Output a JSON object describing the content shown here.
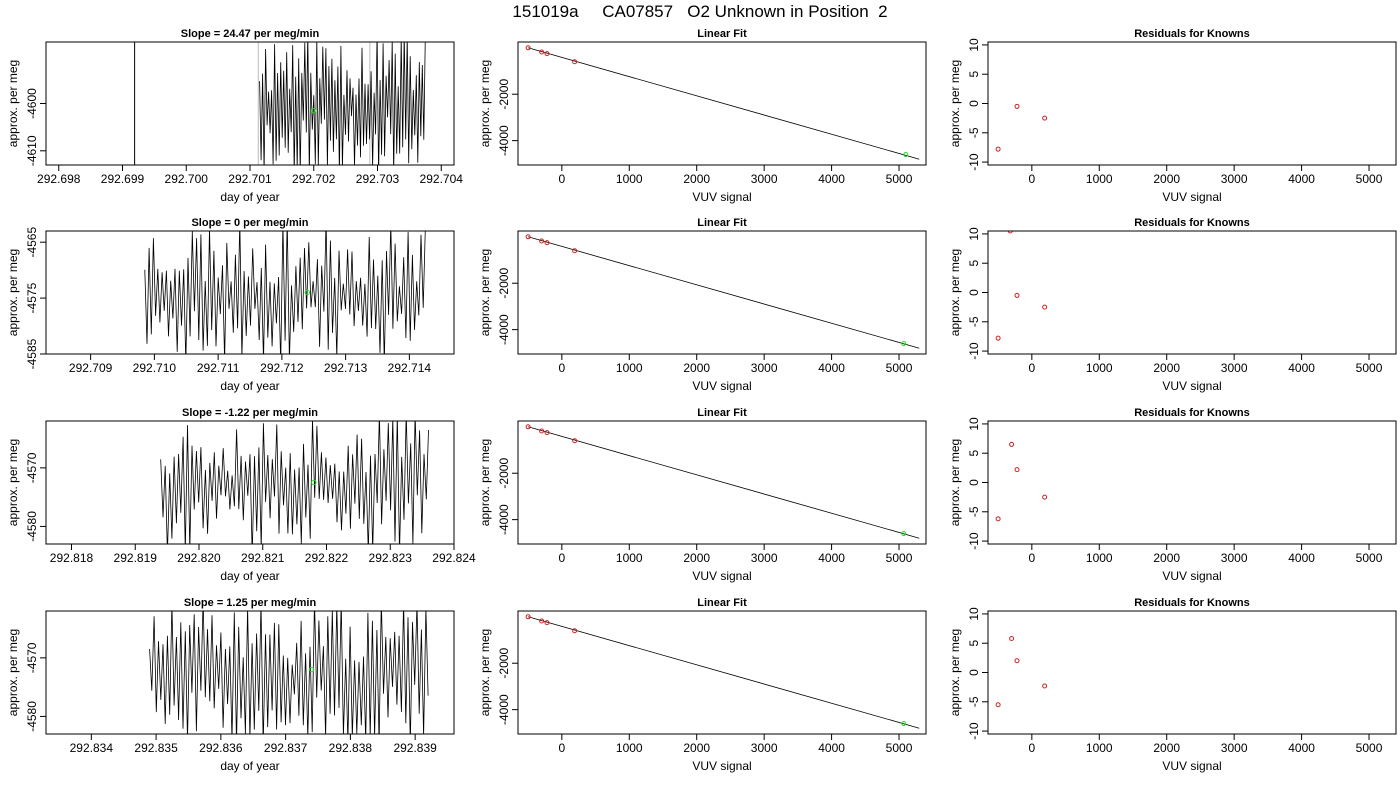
{
  "page": {
    "title": "151019a     CA07857   O2 Unknown in Position  2"
  },
  "chart_data": [
    {
      "type": "line",
      "panel": "time-series",
      "row": 0,
      "title": "Slope =  24.47  per meg/min",
      "xlabel": "day of year",
      "ylabel": "approx. per meg",
      "xlim": [
        292.6978,
        292.7042
      ],
      "ylim": [
        -4613,
        -4587
      ],
      "xticks": [
        "292.698",
        "292.699",
        "292.700",
        "292.701",
        "292.702",
        "292.703",
        "292.704"
      ],
      "xtick_values": [
        292.698,
        292.699,
        292.7,
        292.701,
        292.702,
        292.703,
        292.704
      ],
      "yticks": [
        "-4600",
        "-4610"
      ],
      "ytick_values": [
        -4600,
        -4610
      ],
      "trace": {
        "x_start": 292.70115,
        "x_end": 292.70375,
        "segments": 110,
        "y_bottom": -4613,
        "y_top": -4587,
        "seed": 11
      },
      "extra_lines": [
        {
          "x": 292.69919,
          "color": "#000000"
        },
        {
          "x": 292.70113,
          "color": "#bbbbbb"
        },
        {
          "x": 292.70288,
          "color": "#bbbbbb"
        }
      ],
      "marker": {
        "x": 292.702,
        "y": -4601.5,
        "color": "#22dd22"
      }
    },
    {
      "type": "scatter",
      "panel": "linear-fit",
      "row": 0,
      "title": "Linear Fit",
      "xlabel": "VUV signal",
      "ylabel": "approx. per meg",
      "xlim": [
        -650,
        5400
      ],
      "ylim": [
        -5050,
        250
      ],
      "xticks": [
        "0",
        "1000",
        "2000",
        "3000",
        "4000",
        "5000"
      ],
      "xtick_values": [
        0,
        1000,
        2000,
        3000,
        4000,
        5000
      ],
      "yticks": [
        "-2000",
        "-4000"
      ],
      "ytick_values": [
        -2000,
        -4000
      ],
      "knowns": [
        {
          "x": -500,
          "y": 0
        },
        {
          "x": -300,
          "y": -180
        },
        {
          "x": -220,
          "y": -250
        },
        {
          "x": 190,
          "y": -600
        }
      ],
      "unknown": {
        "x": 5100,
        "y": -4600
      },
      "fit": {
        "x": [
          -500,
          5300
        ],
        "y": [
          0,
          -4800
        ]
      }
    },
    {
      "type": "scatter",
      "panel": "residuals",
      "row": 0,
      "title": "Residuals for Knowns",
      "xlabel": "VUV signal",
      "ylabel": "approx. per meg",
      "xlim": [
        -650,
        5400
      ],
      "ylim": [
        -10.5,
        10.5
      ],
      "xticks": [
        "0",
        "1000",
        "2000",
        "3000",
        "4000",
        "5000"
      ],
      "xtick_values": [
        0,
        1000,
        2000,
        3000,
        4000,
        5000
      ],
      "yticks": [
        "10",
        "5",
        "0",
        "-5",
        "-10"
      ],
      "ytick_values": [
        10,
        5,
        0,
        -5,
        -10
      ],
      "points": [
        {
          "x": -500,
          "y": -7.8
        },
        {
          "x": -220,
          "y": -0.5
        },
        {
          "x": 190,
          "y": -2.5
        }
      ]
    },
    {
      "type": "line",
      "panel": "time-series",
      "row": 1,
      "title": "Slope =  0  per meg/min",
      "xlabel": "day of year",
      "ylabel": "approx. per meg",
      "xlim": [
        292.7083,
        292.7147
      ],
      "ylim": [
        -4585,
        -4563
      ],
      "xticks": [
        "292.709",
        "292.710",
        "292.711",
        "292.712",
        "292.713",
        "292.714"
      ],
      "xtick_values": [
        292.709,
        292.71,
        292.711,
        292.712,
        292.713,
        292.714
      ],
      "yticks": [
        "-4565",
        "-4575",
        "-4585"
      ],
      "ytick_values": [
        -4565,
        -4575,
        -4585
      ],
      "trace": {
        "x_start": 292.70985,
        "x_end": 292.71425,
        "segments": 130,
        "y_bottom": -4585,
        "y_top": -4563,
        "seed": 23
      },
      "extra_lines": [],
      "marker": {
        "x": 292.7124,
        "y": -4574,
        "color": "#22dd22"
      }
    },
    {
      "type": "scatter",
      "panel": "linear-fit",
      "row": 1,
      "title": "Linear Fit",
      "xlabel": "VUV signal",
      "ylabel": "approx. per meg",
      "xlim": [
        -650,
        5400
      ],
      "ylim": [
        -5050,
        250
      ],
      "xticks": [
        "0",
        "1000",
        "2000",
        "3000",
        "4000",
        "5000"
      ],
      "xtick_values": [
        0,
        1000,
        2000,
        3000,
        4000,
        5000
      ],
      "yticks": [
        "-2000",
        "-4000"
      ],
      "ytick_values": [
        -2000,
        -4000
      ],
      "knowns": [
        {
          "x": -500,
          "y": 0
        },
        {
          "x": -300,
          "y": -180
        },
        {
          "x": -220,
          "y": -250
        },
        {
          "x": 190,
          "y": -600
        }
      ],
      "unknown": {
        "x": 5070,
        "y": -4600
      },
      "fit": {
        "x": [
          -500,
          5300
        ],
        "y": [
          0,
          -4800
        ]
      }
    },
    {
      "type": "scatter",
      "panel": "residuals",
      "row": 1,
      "title": "Residuals for Knowns",
      "xlabel": "VUV signal",
      "ylabel": "approx. per meg",
      "xlim": [
        -650,
        5400
      ],
      "ylim": [
        -10.5,
        10.5
      ],
      "xticks": [
        "0",
        "1000",
        "2000",
        "3000",
        "4000",
        "5000"
      ],
      "xtick_values": [
        0,
        1000,
        2000,
        3000,
        4000,
        5000
      ],
      "yticks": [
        "10",
        "5",
        "0",
        "-5",
        "-10"
      ],
      "ytick_values": [
        10,
        5,
        0,
        -5,
        -10
      ],
      "points": [
        {
          "x": -500,
          "y": -7.8
        },
        {
          "x": -220,
          "y": -0.5
        },
        {
          "x": 190,
          "y": -2.5
        },
        {
          "x": -320,
          "y": 10.5
        }
      ]
    },
    {
      "type": "line",
      "panel": "time-series",
      "row": 2,
      "title": "Slope =  -1.22  per meg/min",
      "xlabel": "day of year",
      "ylabel": "approx. per meg",
      "xlim": [
        292.8176,
        292.824
      ],
      "ylim": [
        -4583,
        -4562
      ],
      "xticks": [
        "292.818",
        "292.819",
        "292.820",
        "292.821",
        "292.822",
        "292.823",
        "292.824"
      ],
      "xtick_values": [
        292.818,
        292.819,
        292.82,
        292.821,
        292.822,
        292.823,
        292.824
      ],
      "yticks": [
        "-4570",
        "-4580"
      ],
      "ytick_values": [
        -4570,
        -4580
      ],
      "trace": {
        "x_start": 292.8194,
        "x_end": 292.8236,
        "segments": 120,
        "y_bottom": -4583,
        "y_top": -4562,
        "seed": 37
      },
      "extra_lines": [],
      "marker": {
        "x": 292.8218,
        "y": -4572.5,
        "color": "#22dd22"
      }
    },
    {
      "type": "scatter",
      "panel": "linear-fit",
      "row": 2,
      "title": "Linear Fit",
      "xlabel": "VUV signal",
      "ylabel": "approx. per meg",
      "xlim": [
        -650,
        5400
      ],
      "ylim": [
        -5050,
        250
      ],
      "xticks": [
        "0",
        "1000",
        "2000",
        "3000",
        "4000",
        "5000"
      ],
      "xtick_values": [
        0,
        1000,
        2000,
        3000,
        4000,
        5000
      ],
      "yticks": [
        "-2000",
        "-4000"
      ],
      "ytick_values": [
        -2000,
        -4000
      ],
      "knowns": [
        {
          "x": -500,
          "y": 0
        },
        {
          "x": -300,
          "y": -180
        },
        {
          "x": -220,
          "y": -250
        },
        {
          "x": 190,
          "y": -600
        }
      ],
      "unknown": {
        "x": 5070,
        "y": -4600
      },
      "fit": {
        "x": [
          -500,
          5300
        ],
        "y": [
          0,
          -4800
        ]
      }
    },
    {
      "type": "scatter",
      "panel": "residuals",
      "row": 2,
      "title": "Residuals for Knowns",
      "xlabel": "VUV signal",
      "ylabel": "approx. per meg",
      "xlim": [
        -650,
        5400
      ],
      "ylim": [
        -10.5,
        10.5
      ],
      "xticks": [
        "0",
        "1000",
        "2000",
        "3000",
        "4000",
        "5000"
      ],
      "xtick_values": [
        0,
        1000,
        2000,
        3000,
        4000,
        5000
      ],
      "yticks": [
        "10",
        "5",
        "0",
        "-5",
        "-10"
      ],
      "ytick_values": [
        10,
        5,
        0,
        -5,
        -10
      ],
      "points": [
        {
          "x": -500,
          "y": -6.2
        },
        {
          "x": -300,
          "y": 6.5
        },
        {
          "x": -220,
          "y": 2.2
        },
        {
          "x": 190,
          "y": -2.5
        }
      ]
    },
    {
      "type": "line",
      "panel": "time-series",
      "row": 3,
      "title": "Slope =  1.25  per meg/min",
      "xlabel": "day of year",
      "ylabel": "approx. per meg",
      "xlim": [
        292.8333,
        292.8396
      ],
      "ylim": [
        -4583,
        -4562
      ],
      "xticks": [
        "292.834",
        "292.835",
        "292.836",
        "292.837",
        "292.838",
        "292.839"
      ],
      "xtick_values": [
        292.834,
        292.835,
        292.836,
        292.837,
        292.838,
        292.839
      ],
      "yticks": [
        "-4570",
        "-4580"
      ],
      "ytick_values": [
        -4570,
        -4580
      ],
      "trace": {
        "x_start": 292.8349,
        "x_end": 292.8392,
        "segments": 125,
        "y_bottom": -4583,
        "y_top": -4562,
        "seed": 51
      },
      "extra_lines": [],
      "marker": {
        "x": 292.8374,
        "y": -4572,
        "color": "#22dd22"
      }
    },
    {
      "type": "scatter",
      "panel": "linear-fit",
      "row": 3,
      "title": "Linear Fit",
      "xlabel": "VUV signal",
      "ylabel": "approx. per meg",
      "xlim": [
        -650,
        5400
      ],
      "ylim": [
        -5050,
        250
      ],
      "xticks": [
        "0",
        "1000",
        "2000",
        "3000",
        "4000",
        "5000"
      ],
      "xtick_values": [
        0,
        1000,
        2000,
        3000,
        4000,
        5000
      ],
      "yticks": [
        "-2000",
        "-4000"
      ],
      "ytick_values": [
        -2000,
        -4000
      ],
      "knowns": [
        {
          "x": -500,
          "y": 0
        },
        {
          "x": -300,
          "y": -180
        },
        {
          "x": -220,
          "y": -250
        },
        {
          "x": 190,
          "y": -600
        }
      ],
      "unknown": {
        "x": 5070,
        "y": -4600
      },
      "fit": {
        "x": [
          -500,
          5300
        ],
        "y": [
          0,
          -4800
        ]
      }
    },
    {
      "type": "scatter",
      "panel": "residuals",
      "row": 3,
      "title": "Residuals for Knowns",
      "xlabel": "VUV signal",
      "ylabel": "approx. per meg",
      "xlim": [
        -650,
        5400
      ],
      "ylim": [
        -10.5,
        10.5
      ],
      "xticks": [
        "0",
        "1000",
        "2000",
        "3000",
        "4000",
        "5000"
      ],
      "xtick_values": [
        0,
        1000,
        2000,
        3000,
        4000,
        5000
      ],
      "yticks": [
        "10",
        "5",
        "0",
        "-5",
        "-10"
      ],
      "ytick_values": [
        10,
        5,
        0,
        -5,
        -10
      ],
      "points": [
        {
          "x": -500,
          "y": -5.5
        },
        {
          "x": -300,
          "y": 5.8
        },
        {
          "x": -220,
          "y": 2.0
        },
        {
          "x": 190,
          "y": -2.3
        }
      ]
    }
  ]
}
